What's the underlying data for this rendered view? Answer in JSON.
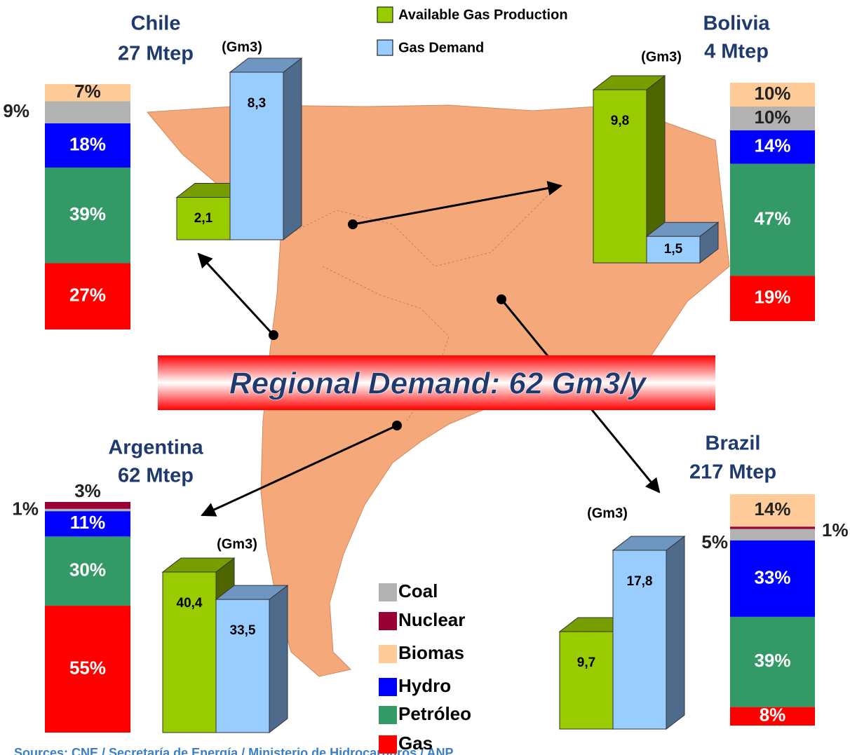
{
  "banner": "Regional Demand: 62 Gm3/y",
  "source": "Sources: CNE / Secretaría de Energía / Ministerio de Hidrocarburos / ANP",
  "gas_legend": [
    {
      "name": "Available Gas Production",
      "color": "#99cc00"
    },
    {
      "name": "Gas Demand",
      "color": "#99ccff"
    }
  ],
  "energy_legend": [
    {
      "name": "Coal",
      "color": "#b2b2b2"
    },
    {
      "name": "Nuclear",
      "color": "#990033"
    },
    {
      "name": "Biomas",
      "color": "#ffcc99"
    },
    {
      "name": "Hydro",
      "color": "#0000ff"
    },
    {
      "name": "Petróleo",
      "color": "#339966"
    },
    {
      "name": "Gas",
      "color": "#ff0000"
    }
  ],
  "countries": [
    {
      "name": "Chile",
      "size": "27 Mtep",
      "unit": "(Gm3)",
      "mix": {
        "categories": [
          "Gas",
          "Petróleo",
          "Hydro",
          "Coal",
          "Biomas"
        ],
        "values": [
          27,
          39,
          18,
          9,
          7
        ],
        "value_labels": [
          "27%",
          "39%",
          "18%",
          "9%",
          "7%"
        ]
      },
      "gas": {
        "values": [
          2.1,
          8.3
        ],
        "value_labels": [
          "2,1",
          "8,3"
        ]
      }
    },
    {
      "name": "Bolivia",
      "size": "4 Mtep",
      "unit": "(Gm3)",
      "mix": {
        "categories": [
          "Gas",
          "Petróleo",
          "Hydro",
          "Coal",
          "Biomas"
        ],
        "values": [
          19,
          47,
          14,
          10,
          10
        ],
        "value_labels": [
          "19%",
          "47%",
          "14%",
          "10%",
          "10%"
        ]
      },
      "gas": {
        "values": [
          9.8,
          1.5
        ],
        "value_labels": [
          "9,8",
          "1,5"
        ]
      }
    },
    {
      "name": "Argentina",
      "size": "62 Mtep",
      "unit": "(Gm3)",
      "mix": {
        "categories": [
          "Gas",
          "Petróleo",
          "Hydro",
          "Coal",
          "Nuclear"
        ],
        "values": [
          55,
          30,
          11,
          1,
          3
        ],
        "value_labels": [
          "55%",
          "30%",
          "11%",
          "1%",
          "3%"
        ]
      },
      "gas": {
        "values": [
          40.4,
          33.5
        ],
        "value_labels": [
          "40,4",
          "33,5"
        ]
      }
    },
    {
      "name": "Brazil",
      "size": "217 Mtep",
      "unit": "(Gm3)",
      "mix": {
        "categories": [
          "Gas",
          "Petróleo",
          "Hydro",
          "Coal",
          "Nuclear",
          "Biomas"
        ],
        "values": [
          8,
          39,
          33,
          5,
          1,
          14
        ],
        "value_labels": [
          "8%",
          "39%",
          "33%",
          "5%",
          "1%",
          "14%"
        ]
      },
      "gas": {
        "values": [
          9.7,
          17.8
        ],
        "value_labels": [
          "9,7",
          "17,8"
        ]
      }
    }
  ]
}
